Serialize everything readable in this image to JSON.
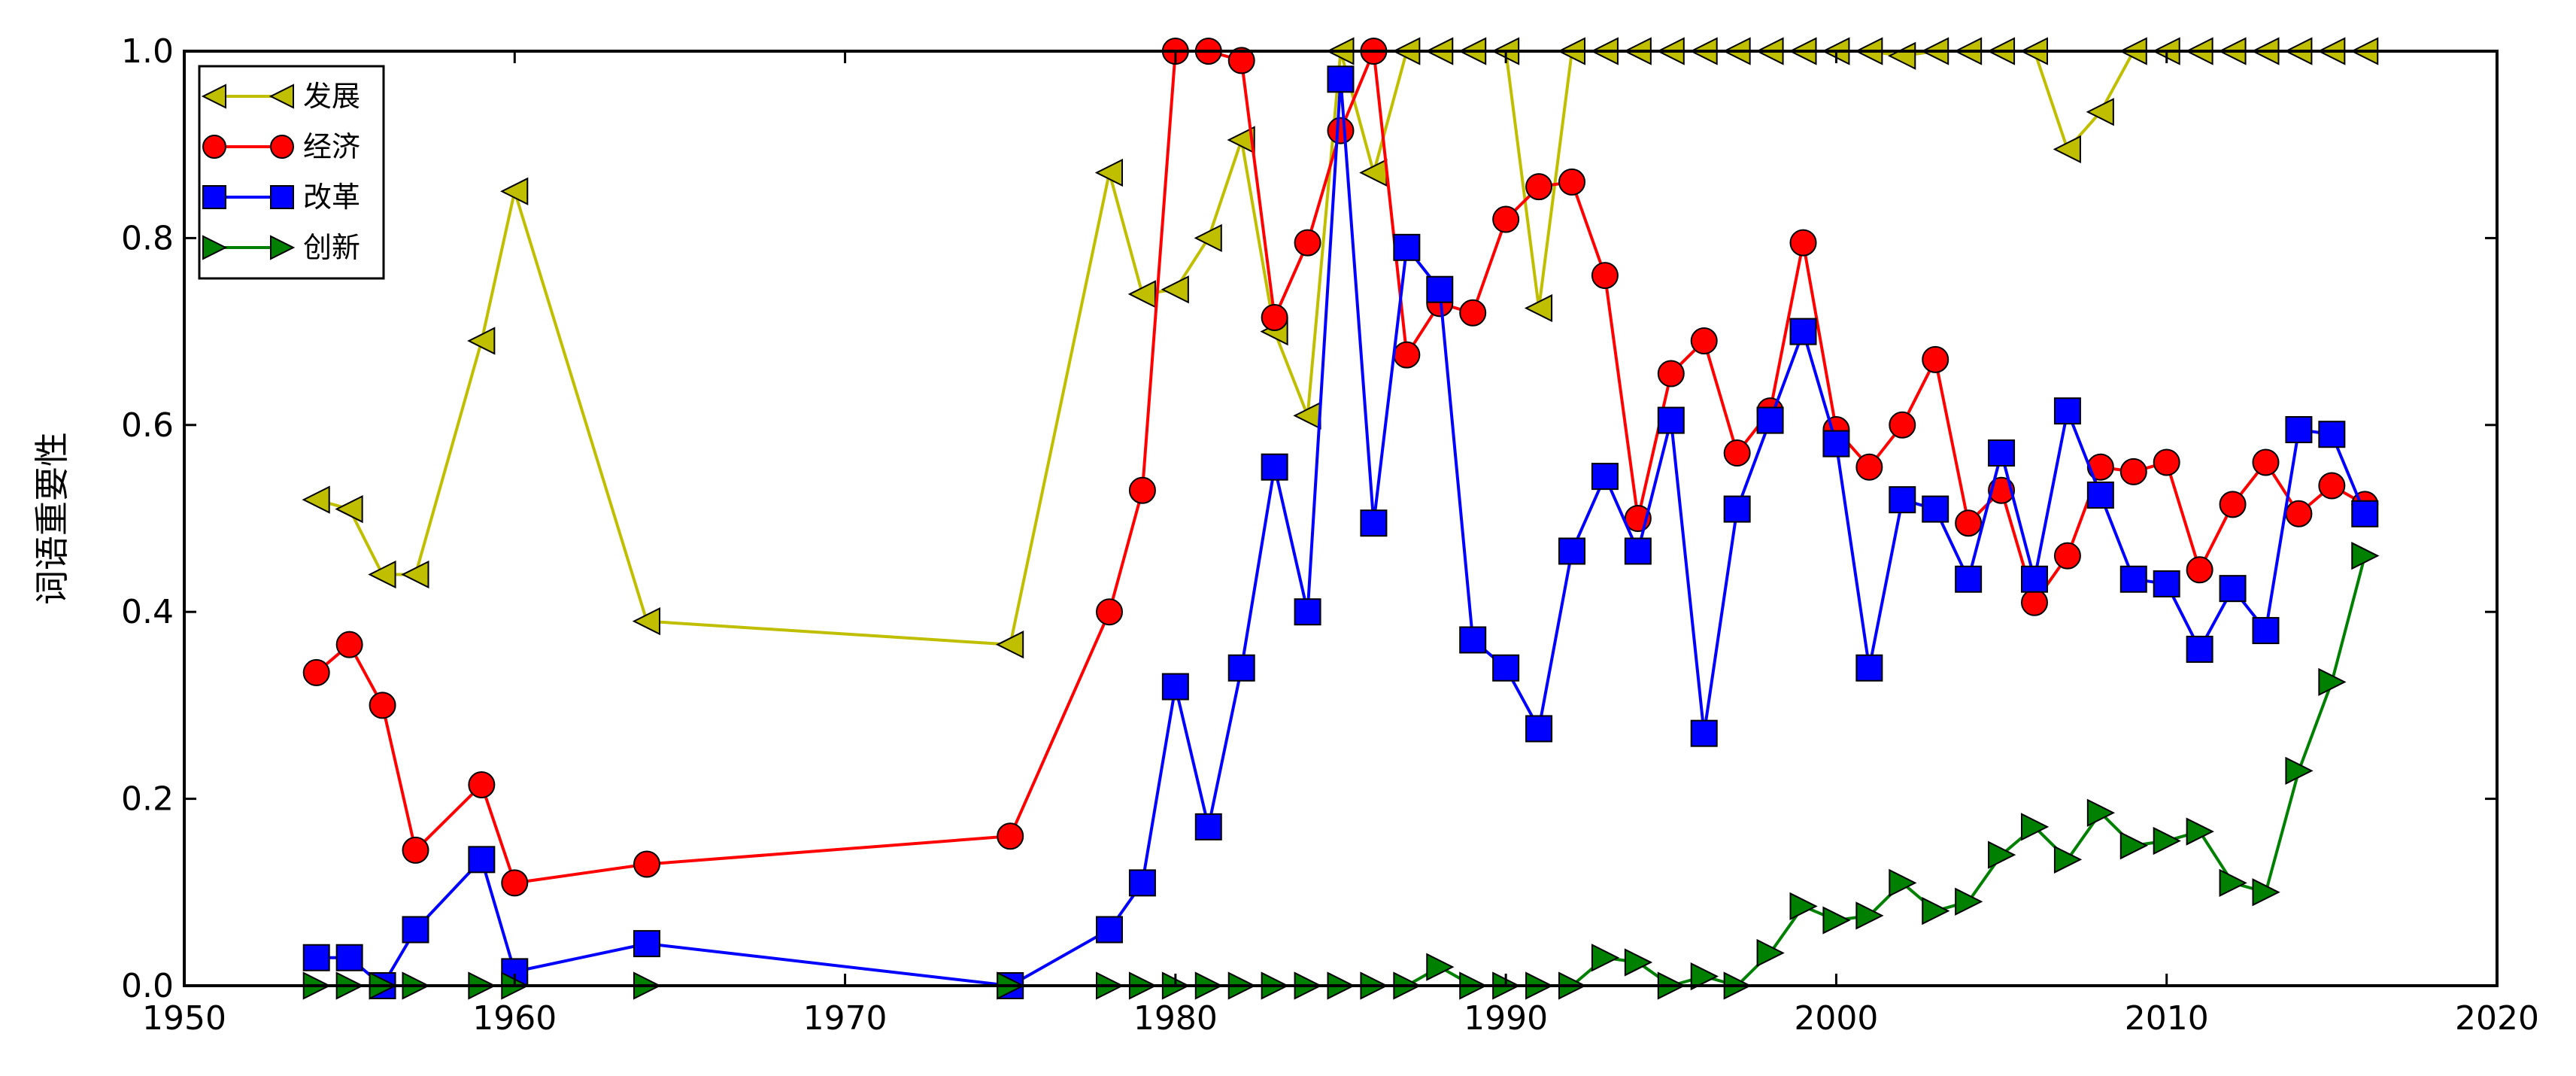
{
  "chart_data": {
    "type": "line",
    "xlabel": "",
    "ylabel": "词语重要性",
    "xlim": [
      1950,
      2020
    ],
    "ylim": [
      0.0,
      1.0
    ],
    "xticks": [
      "1950",
      "1960",
      "1970",
      "1980",
      "1990",
      "2000",
      "2010",
      "2020"
    ],
    "yticks": [
      "0.0",
      "0.2",
      "0.4",
      "0.6",
      "0.8",
      "1.0"
    ],
    "grid": false,
    "legend_position": "top-left",
    "series": [
      {
        "name": "发展",
        "color": "#bfbf00",
        "marker": "triangle-left",
        "x": [
          1954,
          1955,
          1956,
          1957,
          1959,
          1960,
          1964,
          1975,
          1978,
          1979,
          1980,
          1981,
          1982,
          1983,
          1984,
          1985,
          1986,
          1987,
          1988,
          1989,
          1990,
          1991,
          1992,
          1993,
          1994,
          1995,
          1996,
          1997,
          1998,
          1999,
          2000,
          2001,
          2002,
          2003,
          2004,
          2005,
          2006,
          2007,
          2008,
          2009,
          2010,
          2011,
          2012,
          2013,
          2014,
          2015,
          2016
        ],
        "y": [
          0.52,
          0.51,
          0.44,
          0.44,
          0.69,
          0.85,
          0.39,
          0.365,
          0.87,
          0.74,
          0.745,
          0.8,
          0.905,
          0.7,
          0.61,
          1.0,
          0.87,
          1.0,
          1.0,
          1.0,
          1.0,
          0.725,
          1.0,
          1.0,
          1.0,
          1.0,
          1.0,
          1.0,
          1.0,
          1.0,
          1.0,
          1.0,
          0.995,
          1.0,
          1.0,
          1.0,
          1.0,
          0.895,
          0.935,
          1.0,
          1.0,
          1.0,
          1.0,
          1.0,
          1.0,
          1.0,
          1.0
        ]
      },
      {
        "name": "经济",
        "color": "#ff0000",
        "marker": "circle",
        "x": [
          1954,
          1955,
          1956,
          1957,
          1959,
          1960,
          1964,
          1975,
          1978,
          1979,
          1980,
          1981,
          1982,
          1983,
          1984,
          1985,
          1986,
          1987,
          1988,
          1989,
          1990,
          1991,
          1992,
          1993,
          1994,
          1995,
          1996,
          1997,
          1998,
          1999,
          2000,
          2001,
          2002,
          2003,
          2004,
          2005,
          2006,
          2007,
          2008,
          2009,
          2010,
          2011,
          2012,
          2013,
          2014,
          2015,
          2016
        ],
        "y": [
          0.335,
          0.365,
          0.3,
          0.145,
          0.215,
          0.11,
          0.13,
          0.16,
          0.4,
          0.53,
          1.0,
          1.0,
          0.99,
          0.715,
          0.795,
          0.915,
          1.0,
          0.675,
          0.73,
          0.72,
          0.82,
          0.855,
          0.86,
          0.76,
          0.5,
          0.655,
          0.69,
          0.57,
          0.615,
          0.795,
          0.595,
          0.555,
          0.6,
          0.67,
          0.495,
          0.53,
          0.41,
          0.46,
          0.555,
          0.55,
          0.56,
          0.445,
          0.515,
          0.56,
          0.505,
          0.535,
          0.515
        ]
      },
      {
        "name": "改革",
        "color": "#0000ff",
        "marker": "square",
        "x": [
          1954,
          1955,
          1956,
          1957,
          1959,
          1960,
          1964,
          1975,
          1978,
          1979,
          1980,
          1981,
          1982,
          1983,
          1984,
          1985,
          1986,
          1987,
          1988,
          1989,
          1990,
          1991,
          1992,
          1993,
          1994,
          1995,
          1996,
          1997,
          1998,
          1999,
          2000,
          2001,
          2002,
          2003,
          2004,
          2005,
          2006,
          2007,
          2008,
          2009,
          2010,
          2011,
          2012,
          2013,
          2014,
          2015,
          2016
        ],
        "y": [
          0.03,
          0.03,
          0.0,
          0.06,
          0.135,
          0.015,
          0.045,
          0.0,
          0.06,
          0.11,
          0.32,
          0.17,
          0.34,
          0.555,
          0.4,
          0.97,
          0.495,
          0.79,
          0.745,
          0.37,
          0.34,
          0.275,
          0.465,
          0.545,
          0.465,
          0.605,
          0.27,
          0.51,
          0.605,
          0.7,
          0.58,
          0.34,
          0.52,
          0.51,
          0.435,
          0.57,
          0.435,
          0.615,
          0.525,
          0.435,
          0.43,
          0.36,
          0.425,
          0.38,
          0.595,
          0.59,
          0.505
        ]
      },
      {
        "name": "创新",
        "color": "#008000",
        "marker": "triangle-right",
        "x": [
          1954,
          1955,
          1956,
          1957,
          1959,
          1960,
          1964,
          1975,
          1978,
          1979,
          1980,
          1981,
          1982,
          1983,
          1984,
          1985,
          1986,
          1987,
          1988,
          1989,
          1990,
          1991,
          1992,
          1993,
          1994,
          1995,
          1996,
          1997,
          1998,
          1999,
          2000,
          2001,
          2002,
          2003,
          2004,
          2005,
          2006,
          2007,
          2008,
          2009,
          2010,
          2011,
          2012,
          2013,
          2014,
          2015,
          2016
        ],
        "y": [
          0.0,
          0.0,
          0.0,
          0.0,
          0.0,
          0.0,
          0.0,
          0.0,
          0.0,
          0.0,
          0.0,
          0.0,
          0.0,
          0.0,
          0.0,
          0.0,
          0.0,
          0.0,
          0.02,
          0.0,
          0.0,
          0.0,
          0.0,
          0.03,
          0.025,
          0.0,
          0.01,
          0.0,
          0.035,
          0.085,
          0.07,
          0.075,
          0.11,
          0.08,
          0.09,
          0.14,
          0.17,
          0.135,
          0.185,
          0.15,
          0.155,
          0.165,
          0.11,
          0.1,
          0.23,
          0.325,
          0.46
        ]
      }
    ]
  }
}
